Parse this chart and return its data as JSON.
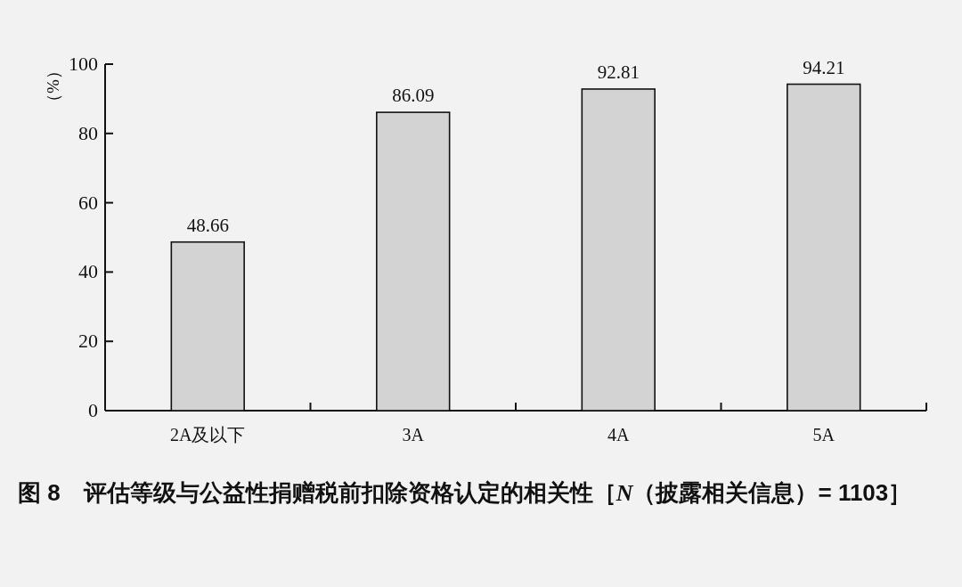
{
  "chart_data": {
    "type": "bar",
    "title": "图 8　评估等级与公益性捐赠税前扣除资格认定的相关性［*N*（披露相关信息）= 1103］",
    "ylabel": "（%）",
    "categories": [
      "2A及以下",
      "3A",
      "4A",
      "5A"
    ],
    "values": [
      48.66,
      86.09,
      92.81,
      94.21
    ],
    "color": "#d3d3d3",
    "ylim": [
      0,
      100
    ],
    "yticks": [
      0,
      20,
      40,
      60,
      80,
      100
    ],
    "data_labels": true
  }
}
